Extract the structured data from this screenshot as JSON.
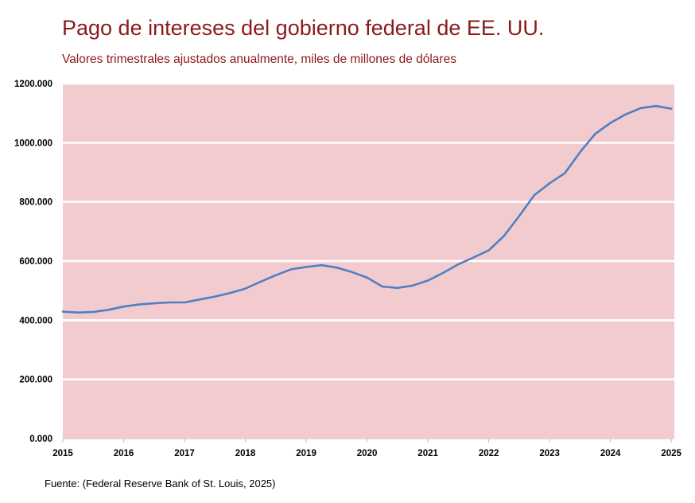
{
  "header": {
    "title": "Pago de intereses del gobierno federal de EE. UU.",
    "subtitle": "Valores trimestrales ajustados anualmente, miles de millones de dólares"
  },
  "footer": {
    "source": "Fuente: (Federal Reserve Bank of St. Louis, 2025)"
  },
  "colors": {
    "plot_background": "#f2cbce",
    "gridline": "#ffffff",
    "line": "#4f7fc4",
    "title": "#8b1a1a"
  },
  "chart_data": {
    "type": "line",
    "title": "Pago de intereses del gobierno federal de EE. UU.",
    "subtitle": "Valores trimestrales ajustados anualmente, miles de millones de dólares",
    "xlabel": "",
    "ylabel": "",
    "xlim": [
      2015,
      2025.05
    ],
    "ylim": [
      0,
      1200000
    ],
    "grid": true,
    "legend": "none",
    "x_ticks": [
      "2015",
      "2016",
      "2017",
      "2018",
      "2019",
      "2020",
      "2021",
      "2022",
      "2023",
      "2024",
      "2025"
    ],
    "y_ticks": [
      {
        "value": 0,
        "label": "0.000"
      },
      {
        "value": 200000,
        "label": "200.000"
      },
      {
        "value": 400000,
        "label": "400.000"
      },
      {
        "value": 600000,
        "label": "600.000"
      },
      {
        "value": 800000,
        "label": "800.000"
      },
      {
        "value": 1000000,
        "label": "1000.000"
      },
      {
        "value": 1200000,
        "label": "1200.000"
      }
    ],
    "series": [
      {
        "x": [
          2015.0,
          2015.25,
          2015.5,
          2015.75,
          2016.0,
          2016.25,
          2016.5,
          2016.75,
          2017.0,
          2017.25,
          2017.5,
          2017.75,
          2018.0,
          2018.25,
          2018.5,
          2018.75,
          2019.0,
          2019.25,
          2019.5,
          2019.75,
          2020.0,
          2020.25,
          2020.5,
          2020.75,
          2021.0,
          2021.25,
          2021.5,
          2021.75,
          2022.0,
          2022.25,
          2022.5,
          2022.75,
          2023.0,
          2023.25,
          2023.5,
          2023.75,
          2024.0,
          2024.25,
          2024.5,
          2024.75,
          2025.0
        ],
        "values": [
          429000,
          426000,
          428000,
          435000,
          446000,
          453000,
          457000,
          460000,
          460000,
          470000,
          480000,
          492000,
          507000,
          530000,
          552000,
          572000,
          580000,
          586000,
          578000,
          563000,
          544000,
          514000,
          509000,
          517000,
          534000,
          560000,
          589000,
          612000,
          636000,
          685000,
          752000,
          823000,
          863000,
          897000,
          968000,
          1030000,
          1067000,
          1096000,
          1117000,
          1124000,
          1115000
        ]
      }
    ]
  }
}
